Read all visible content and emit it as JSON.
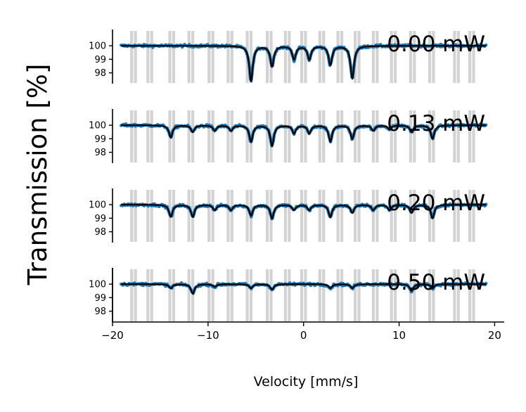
{
  "chart_data": {
    "type": "line",
    "ylabel": "Transmission [%]",
    "xlabel": "Velocity [mm/s]",
    "xlim": [
      -20,
      21
    ],
    "x_ticks": [
      -20,
      -10,
      0,
      10,
      20
    ],
    "x_tick_labels": [
      "−20",
      "−10",
      "0",
      "10",
      "20"
    ],
    "ylim": [
      97.2,
      101.2
    ],
    "y_ticks": [
      100,
      99,
      98
    ],
    "y_tick_labels": [
      "100",
      "99",
      "98"
    ],
    "highlight_color": "#cccccc",
    "data_color": "#1f77b4",
    "fit_color": "#000000",
    "reference_lines_mm_s": [
      -18.0,
      -17.6,
      -16.3,
      -15.9,
      -14.0,
      -13.6,
      -12.0,
      -11.6,
      -9.9,
      -9.5,
      -7.9,
      -7.5,
      -5.9,
      -5.5,
      -3.8,
      -3.4,
      -1.9,
      -1.5,
      -0.2,
      0.2,
      1.7,
      2.1,
      3.6,
      4.0,
      5.4,
      5.8,
      7.3,
      7.7,
      9.2,
      9.6,
      11.2,
      11.6,
      13.2,
      13.6,
      15.8,
      16.2,
      17.4,
      17.8
    ],
    "panels": [
      {
        "label": "0.00 mW",
        "x_range": [
          -19.1,
          19.1
        ],
        "lines": [
          {
            "center": -5.5,
            "depth": 2.6
          },
          {
            "center": -3.3,
            "depth": 1.5
          },
          {
            "center": -1.0,
            "depth": 1.0
          },
          {
            "center": 0.6,
            "depth": 1.0
          },
          {
            "center": 2.8,
            "depth": 1.4
          },
          {
            "center": 5.1,
            "depth": 2.4
          }
        ]
      },
      {
        "label": "0.13 mW",
        "x_range": [
          -19.1,
          19.1
        ],
        "lines": [
          {
            "center": -13.9,
            "depth": 0.9
          },
          {
            "center": -11.6,
            "depth": 0.5
          },
          {
            "center": -9.3,
            "depth": 0.4
          },
          {
            "center": -7.6,
            "depth": 0.4
          },
          {
            "center": -5.5,
            "depth": 1.2
          },
          {
            "center": -3.3,
            "depth": 1.5
          },
          {
            "center": -1.0,
            "depth": 0.6
          },
          {
            "center": 0.6,
            "depth": 0.6
          },
          {
            "center": 2.8,
            "depth": 1.2
          },
          {
            "center": 5.1,
            "depth": 1.0
          },
          {
            "center": 7.3,
            "depth": 0.4
          },
          {
            "center": 9.0,
            "depth": 0.3
          },
          {
            "center": 11.3,
            "depth": 0.5
          },
          {
            "center": 13.5,
            "depth": 1.0
          }
        ]
      },
      {
        "label": "0.20 mW",
        "x_range": [
          -19.1,
          19.1
        ],
        "lines": [
          {
            "center": -13.9,
            "depth": 0.9
          },
          {
            "center": -11.6,
            "depth": 0.9
          },
          {
            "center": -9.3,
            "depth": 0.4
          },
          {
            "center": -7.6,
            "depth": 0.4
          },
          {
            "center": -5.5,
            "depth": 0.8
          },
          {
            "center": -3.3,
            "depth": 1.0
          },
          {
            "center": -1.0,
            "depth": 0.4
          },
          {
            "center": 0.6,
            "depth": 0.4
          },
          {
            "center": 2.8,
            "depth": 0.9
          },
          {
            "center": 5.1,
            "depth": 0.6
          },
          {
            "center": 7.3,
            "depth": 0.4
          },
          {
            "center": 9.0,
            "depth": 0.4
          },
          {
            "center": 11.3,
            "depth": 0.6
          },
          {
            "center": 13.5,
            "depth": 1.0
          }
        ]
      },
      {
        "label": "0.50 mW",
        "x_range": [
          -19.1,
          19.1
        ],
        "lines": [
          {
            "center": -13.9,
            "depth": 0.3
          },
          {
            "center": -11.6,
            "depth": 0.7
          },
          {
            "center": -9.3,
            "depth": 0.2
          },
          {
            "center": -5.5,
            "depth": 0.3
          },
          {
            "center": -3.3,
            "depth": 0.4
          },
          {
            "center": 2.8,
            "depth": 0.3
          },
          {
            "center": 5.1,
            "depth": 0.3
          },
          {
            "center": 11.3,
            "depth": 0.5
          },
          {
            "center": 13.5,
            "depth": 0.3
          }
        ]
      }
    ]
  }
}
